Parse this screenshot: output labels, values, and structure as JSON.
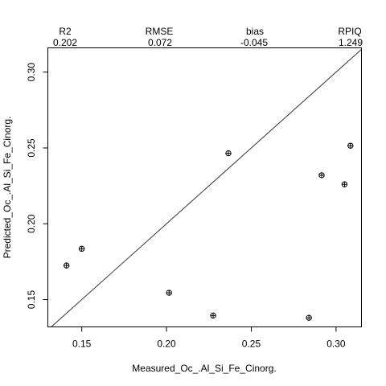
{
  "chart_data": {
    "type": "scatter",
    "title": "",
    "xlabel": "Measured_Oc_.Al_Si_Fe_Cinorg.",
    "ylabel": "Predicted_Oc_.Al_Si_Fe_Cinorg.",
    "xlim": [
      0.13,
      0.315
    ],
    "ylim": [
      0.132,
      0.316
    ],
    "x_ticks": [
      0.15,
      0.2,
      0.25,
      0.3
    ],
    "x_tick_labels": [
      "0.15",
      "0.20",
      "0.25",
      "0.30"
    ],
    "y_ticks": [
      0.15,
      0.2,
      0.25,
      0.3
    ],
    "y_tick_labels": [
      "0.15",
      "0.20",
      "0.25",
      "0.30"
    ],
    "grid": false,
    "reference_line": "1:1",
    "marker": "circle-plus",
    "points": [
      {
        "x": 0.141,
        "y": 0.1725
      },
      {
        "x": 0.15,
        "y": 0.1835
      },
      {
        "x": 0.2015,
        "y": 0.1545
      },
      {
        "x": 0.2275,
        "y": 0.1395
      },
      {
        "x": 0.2365,
        "y": 0.2465
      },
      {
        "x": 0.284,
        "y": 0.138
      },
      {
        "x": 0.2915,
        "y": 0.232
      },
      {
        "x": 0.305,
        "y": 0.226
      },
      {
        "x": 0.3085,
        "y": 0.2515
      }
    ],
    "stats": [
      {
        "name": "R2",
        "value": "0.202"
      },
      {
        "name": "RMSE",
        "value": "0.072"
      },
      {
        "name": "bias",
        "value": "-0.045"
      },
      {
        "name": "RPIQ",
        "value": "1.249"
      }
    ]
  }
}
